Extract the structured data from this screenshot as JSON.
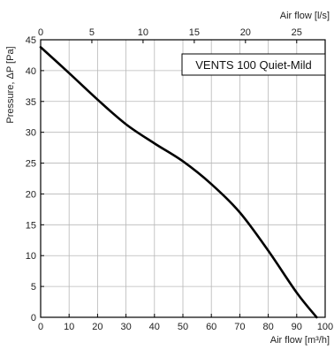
{
  "chart_data": {
    "type": "line",
    "title": "",
    "legend": {
      "text": "VENTS 100 Quiet-Mild",
      "placement": "top-right"
    },
    "xlabel": "Air flow [m³/h]",
    "ylabel": "Pressure, ΔP [Pa]",
    "x2label": "Air flow [l/s]",
    "xlim": [
      0,
      100
    ],
    "ylim": [
      0,
      45
    ],
    "x2lim": [
      0,
      27.78
    ],
    "xticks": [
      "0",
      "10",
      "20",
      "30",
      "40",
      "50",
      "60",
      "70",
      "80",
      "90",
      "100"
    ],
    "yticks": [
      "0",
      "5",
      "10",
      "15",
      "20",
      "25",
      "30",
      "35",
      "40",
      "45"
    ],
    "x2ticks": [
      "0",
      "5",
      "10",
      "15",
      "20",
      "25"
    ],
    "grid": true,
    "series": [
      {
        "name": "VENTS 100 Quiet-Mild",
        "x": [
          0,
          10,
          20,
          30,
          40,
          50,
          60,
          70,
          80,
          90,
          97
        ],
        "y": [
          43.8,
          39.6,
          35.3,
          31.3,
          28.2,
          25.3,
          21.6,
          17.0,
          10.8,
          4.0,
          0
        ]
      }
    ]
  }
}
